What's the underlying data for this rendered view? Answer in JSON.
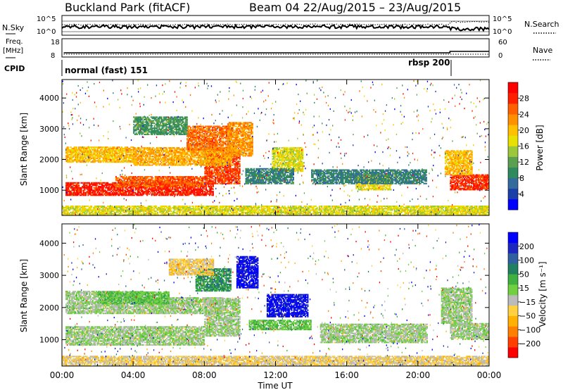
{
  "header": {
    "title_left": "Buckland Park (fitACF)",
    "title_right": "Beam 04 22/Aug/2015 – 23/Aug/2015"
  },
  "nsky": {
    "label": "N.Sky",
    "tick_top": "10^5",
    "tick_bottom": "10^0",
    "right_tick_top": "10^5",
    "right_tick_bottom": "10^0",
    "right_label": "N.Search"
  },
  "freq": {
    "label_top": "Freq.",
    "label_unit": "[MHz]",
    "tick_top": "18",
    "tick_bottom": "8",
    "right_tick_top": "60",
    "right_tick_bottom": "0",
    "right_label": "Nave"
  },
  "cpid": {
    "label": "CPID",
    "segments": [
      {
        "text": "normal (fast) 151",
        "start": "00:00",
        "end": "21:50"
      },
      {
        "text": "rbsp 200",
        "start": "21:50",
        "end": "24:00"
      }
    ]
  },
  "chart_data": [
    {
      "type": "heatmap",
      "name": "Power",
      "xlabel": "",
      "ylabel": "Slant Range [km]",
      "x_ticks": [
        "00:00",
        "04:00",
        "08:00",
        "12:00",
        "16:00",
        "20:00",
        "00:00"
      ],
      "xlim_hours": [
        0,
        24
      ],
      "y_ticks": [
        "1000",
        "2000",
        "3000",
        "4000"
      ],
      "ylim_km": [
        180,
        4600
      ],
      "colorbar": {
        "label": "Power [dB]",
        "ticks": [
          "4",
          "8",
          "12",
          "16",
          "20",
          "24",
          "28"
        ],
        "range": [
          0,
          30
        ],
        "colors": [
          "#0000ff",
          "#1c3ea8",
          "#336c9c",
          "#2f8a5e",
          "#5aa050",
          "#9ac83a",
          "#e8e000",
          "#ffc000",
          "#ff9000",
          "#ff6000",
          "#ff2000",
          "#ff0000"
        ]
      },
      "regions": [
        {
          "t0": 0.2,
          "t1": 8.5,
          "r0": 820,
          "r1": 1250,
          "value": 27
        },
        {
          "t0": 3.0,
          "t1": 8.0,
          "r0": 1100,
          "r1": 1450,
          "value": 24
        },
        {
          "t0": 8.0,
          "t1": 10.0,
          "r0": 1200,
          "r1": 2300,
          "value": 25
        },
        {
          "t0": 0.2,
          "t1": 4.0,
          "r0": 1900,
          "r1": 2400,
          "value": 19
        },
        {
          "t0": 4.0,
          "t1": 9.5,
          "r0": 1800,
          "r1": 2400,
          "value": 20
        },
        {
          "t0": 7.0,
          "t1": 9.5,
          "r0": 2300,
          "r1": 3100,
          "value": 23
        },
        {
          "t0": 9.3,
          "t1": 10.7,
          "r0": 2100,
          "r1": 3200,
          "value": 21
        },
        {
          "t0": 4.0,
          "t1": 7.0,
          "r0": 2800,
          "r1": 3400,
          "value": 10
        },
        {
          "t0": 11.8,
          "t1": 13.5,
          "r0": 1600,
          "r1": 2400,
          "value": 16
        },
        {
          "t0": 10.3,
          "t1": 13.0,
          "r0": 1200,
          "r1": 1700,
          "value": 8
        },
        {
          "t0": 16.5,
          "t1": 18.5,
          "r0": 1000,
          "r1": 1500,
          "value": 17
        },
        {
          "t0": 14.0,
          "t1": 20.5,
          "r0": 1200,
          "r1": 1650,
          "value": 8
        },
        {
          "t0": 21.8,
          "t1": 24.0,
          "r0": 1000,
          "r1": 1500,
          "value": 26
        },
        {
          "t0": 21.5,
          "t1": 23.0,
          "r0": 1500,
          "r1": 2300,
          "value": 19
        },
        {
          "t0": 0.0,
          "t1": 24.0,
          "r0": 180,
          "r1": 500,
          "value": 16
        }
      ]
    },
    {
      "type": "heatmap",
      "name": "Velocity",
      "xlabel": "Time UT",
      "ylabel": "Slant Range [km]",
      "x_ticks": [
        "00:00",
        "04:00",
        "08:00",
        "12:00",
        "16:00",
        "20:00",
        "00:00"
      ],
      "xlim_hours": [
        0,
        24
      ],
      "y_ticks": [
        "1000",
        "2000",
        "3000",
        "4000"
      ],
      "ylim_km": [
        180,
        4600
      ],
      "colorbar": {
        "label": "Velocity [m s⁻¹]",
        "ticks": [
          "200",
          "100",
          "50",
          "15",
          "−15",
          "−50",
          "−100",
          "−200"
        ],
        "range": [
          -250,
          250
        ],
        "colors": [
          "#ff0000",
          "#ff4000",
          "#ff8000",
          "#ffb000",
          "#ffd040",
          "#bbbbbb",
          "#70d040",
          "#40b040",
          "#208060",
          "#3060a0",
          "#1c28c0",
          "#0000ff"
        ]
      },
      "regions": [
        {
          "t0": 0.2,
          "t1": 8.0,
          "r0": 820,
          "r1": 1400,
          "value": 0
        },
        {
          "t0": 8.0,
          "t1": 10.0,
          "r0": 1100,
          "r1": 2300,
          "value": 0
        },
        {
          "t0": 0.2,
          "t1": 4.5,
          "r0": 1800,
          "r1": 2500,
          "value": 0
        },
        {
          "t0": 4.5,
          "t1": 9.0,
          "r0": 1800,
          "r1": 2300,
          "value": 0
        },
        {
          "t0": 2.0,
          "t1": 6.0,
          "r0": 2100,
          "r1": 2500,
          "value": 40
        },
        {
          "t0": 7.5,
          "t1": 9.5,
          "r0": 2500,
          "r1": 3200,
          "value": 90
        },
        {
          "t0": 6.0,
          "t1": 8.5,
          "r0": 3000,
          "r1": 3500,
          "value": -60
        },
        {
          "t0": 9.8,
          "t1": 11.0,
          "r0": 2600,
          "r1": 3600,
          "value": 220
        },
        {
          "t0": 11.5,
          "t1": 13.8,
          "r0": 1700,
          "r1": 2400,
          "value": 220
        },
        {
          "t0": 10.5,
          "t1": 14.0,
          "r0": 1300,
          "r1": 1600,
          "value": 40
        },
        {
          "t0": 14.5,
          "t1": 20.5,
          "r0": 900,
          "r1": 1500,
          "value": 0
        },
        {
          "t0": 21.8,
          "t1": 24.0,
          "r0": 1000,
          "r1": 1500,
          "value": 0
        },
        {
          "t0": 21.3,
          "t1": 23.0,
          "r0": 1500,
          "r1": 2600,
          "value": 0
        },
        {
          "t0": 0.0,
          "t1": 24.0,
          "r0": 180,
          "r1": 500,
          "value": -50
        }
      ]
    }
  ]
}
